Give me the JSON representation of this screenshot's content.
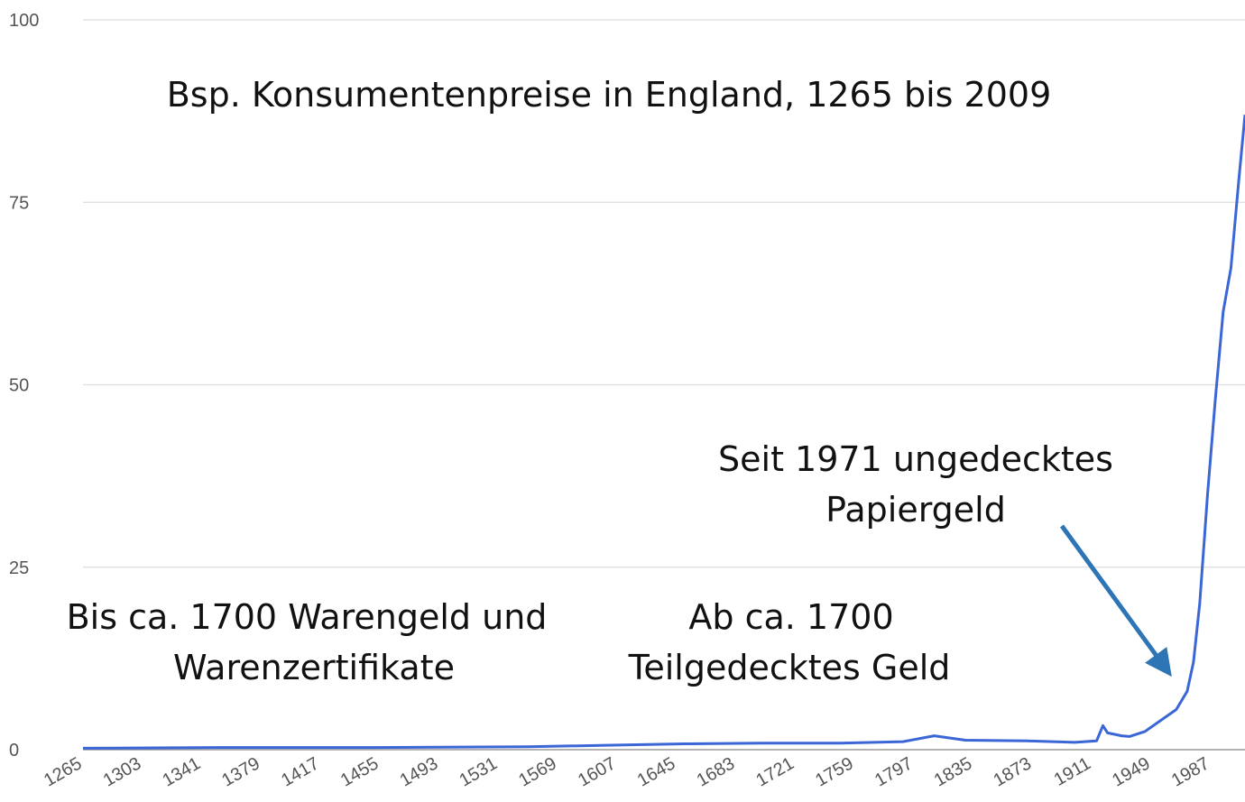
{
  "chart_data": {
    "type": "line",
    "title": "Bsp. Konsumentenpreise in England, 1265 bis 2009",
    "annotations": [
      "Seit 1971 ungedecktes",
      "Papiergeld",
      "Bis ca. 1700 Warengeld und",
      "Warenzertifikate",
      "Ab ca. 1700",
      "Teilgedecktes Geld"
    ],
    "x": [
      1265,
      1350,
      1450,
      1550,
      1600,
      1650,
      1700,
      1750,
      1790,
      1800,
      1810,
      1830,
      1870,
      1900,
      1914,
      1918,
      1921,
      1930,
      1935,
      1945,
      1955,
      1965,
      1972,
      1976,
      1980,
      1985,
      1990,
      1995,
      2000,
      2005,
      2009
    ],
    "series": [
      {
        "color": "#3a66d6",
        "values": [
          0.2,
          0.3,
          0.3,
          0.4,
          0.6,
          0.8,
          0.9,
          0.9,
          1.1,
          1.5,
          1.9,
          1.3,
          1.2,
          1.0,
          1.2,
          3.3,
          2.3,
          1.9,
          1.8,
          2.5,
          4.0,
          5.5,
          8,
          12,
          20,
          35,
          48,
          60,
          66,
          78,
          87
        ]
      }
    ],
    "xlim": [
      1265,
      2009
    ],
    "xticks": [
      1265,
      1303,
      1341,
      1379,
      1417,
      1455,
      1493,
      1531,
      1569,
      1607,
      1645,
      1683,
      1721,
      1759,
      1797,
      1835,
      1873,
      1911,
      1949,
      1987
    ],
    "ylim": [
      0,
      100
    ],
    "yticks": [
      0,
      25,
      50,
      75,
      100
    ],
    "grid": true
  }
}
